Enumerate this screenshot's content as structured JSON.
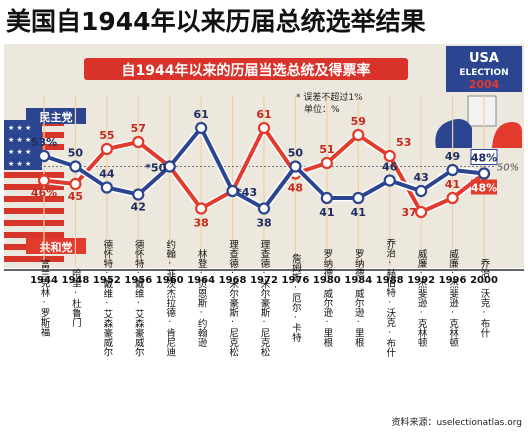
{
  "header": {
    "title": "美国自1944年以来历届总统选举结果",
    "subtitle": "自1944年以来的历届当选总统及得票率",
    "note_line1": "* 误差不超过1%",
    "note_line2": "单位：%",
    "source": "资料来源：uselectionatlas.org"
  },
  "badge": {
    "line1": "USA",
    "line2": "ELECTION",
    "line3": "2004"
  },
  "legend": {
    "dem": "民主党",
    "rep": "共和党"
  },
  "colors": {
    "dem": "#2b4590",
    "rep": "#e23a2c",
    "bg": "#ede8de",
    "grid": "#f0cfa6"
  },
  "chart_data": {
    "type": "line",
    "title": "自1944年以来的历届当选总统及得票率",
    "x": [
      "1944",
      "1948",
      "1952",
      "1956",
      "1960",
      "1964",
      "1968",
      "1972",
      "1976",
      "1980",
      "1984",
      "1988",
      "1992",
      "1996",
      "2000"
    ],
    "series": [
      {
        "name": "民主党",
        "values": [
          53,
          50,
          44,
          42,
          50,
          61,
          43,
          38,
          50,
          41,
          41,
          46,
          43,
          49,
          48
        ],
        "labels": [
          "53%",
          "50",
          "44",
          "42",
          "*50",
          "61",
          "*43",
          "38",
          "50",
          "41",
          "41",
          "46",
          "43",
          "49",
          "48%"
        ]
      },
      {
        "name": "共和党",
        "values": [
          46,
          45,
          55,
          57,
          50,
          38,
          43,
          61,
          48,
          51,
          59,
          53,
          37,
          41,
          48
        ],
        "labels": [
          "46%",
          "45",
          "55",
          "57",
          "",
          "38",
          "",
          "61",
          "48",
          "51",
          "59",
          "53",
          "37",
          "41",
          "48%"
        ]
      }
    ],
    "reference_line": {
      "value": 50,
      "label": "50%"
    },
    "winners": [
      "富兰克林·罗斯福",
      "哈里·杜鲁门",
      "德怀特·戴维·艾森豪威尔",
      "德怀特·戴维·艾森豪威尔",
      "约翰·菲茨杰拉德·肯尼迪",
      "林登·贝恩斯·约翰逊",
      "理查德·米尔豪斯·尼克松",
      "理查德·米尔豪斯·尼克松",
      "詹姆斯·厄尔·卡特",
      "罗纳德·威尔逊·里根",
      "罗纳德·威尔逊·里根",
      "乔治·赫伯特·沃克·布什",
      "威廉·杰斐逊·克林顿",
      "威廉·杰斐逊·克林顿",
      "乔治·沃克·布什"
    ],
    "ylim": [
      30,
      65
    ]
  }
}
